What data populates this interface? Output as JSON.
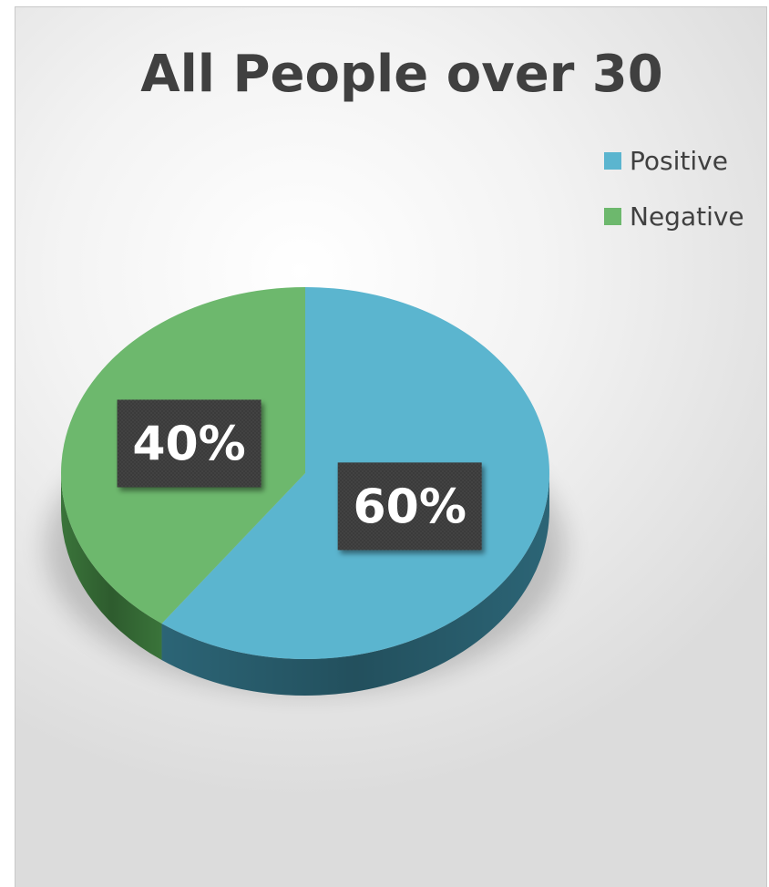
{
  "chart_data": {
    "type": "pie",
    "title": "All People over 30",
    "legend_position": "top-right",
    "slices": [
      {
        "label": "Positive",
        "value": 60,
        "display": "60%",
        "color": "#5BB5CF",
        "side_color": "#2E6A7C"
      },
      {
        "label": "Negative",
        "value": 40,
        "display": "40%",
        "color": "#6DB86D",
        "side_color": "#3D7A3D"
      }
    ]
  }
}
